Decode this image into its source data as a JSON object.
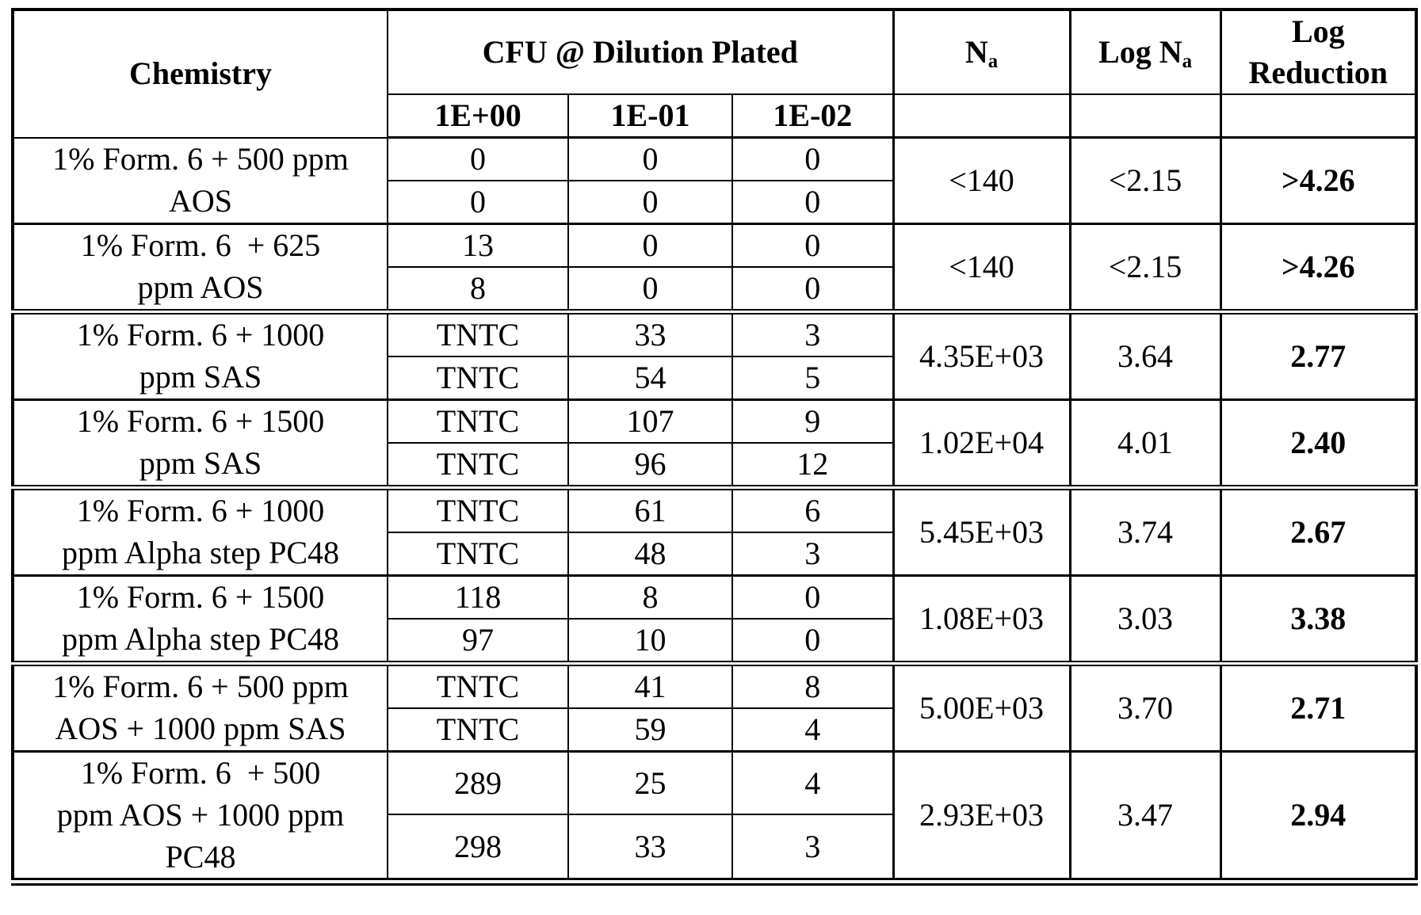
{
  "table": {
    "headers": {
      "chemistry": "Chemistry",
      "cfu_group": "CFU @ Dilution Plated",
      "dilutions": [
        "1E+00",
        "1E-01",
        "1E-02"
      ],
      "na": {
        "base": "N",
        "sub": "a"
      },
      "log_na": {
        "base": "Log N",
        "sub": "a"
      },
      "log_reduction": "Log Reduction"
    },
    "groups": [
      {
        "chemistry_lines": [
          "1% Form. 6 + 500 ppm",
          "AOS"
        ],
        "rows": [
          [
            "0",
            "0",
            "0"
          ],
          [
            "0",
            "0",
            "0"
          ]
        ],
        "na": "<140",
        "log_na": "<2.15",
        "log_reduction": ">4.26",
        "heavy_top": false
      },
      {
        "chemistry_lines": [
          "1% Form. 6  + 625",
          "ppm AOS"
        ],
        "rows": [
          [
            "13",
            "0",
            "0"
          ],
          [
            "8",
            "0",
            "0"
          ]
        ],
        "na": "<140",
        "log_na": "<2.15",
        "log_reduction": ">4.26",
        "heavy_top": false
      },
      {
        "chemistry_lines": [
          "1% Form. 6 + 1000",
          "ppm SAS"
        ],
        "rows": [
          [
            "TNTC",
            "33",
            "3"
          ],
          [
            "TNTC",
            "54",
            "5"
          ]
        ],
        "na": "4.35E+03",
        "log_na": "3.64",
        "log_reduction": "2.77",
        "heavy_top": true
      },
      {
        "chemistry_lines": [
          "1% Form. 6 + 1500",
          "ppm SAS"
        ],
        "rows": [
          [
            "TNTC",
            "107",
            "9"
          ],
          [
            "TNTC",
            "96",
            "12"
          ]
        ],
        "na": "1.02E+04",
        "log_na": "4.01",
        "log_reduction": "2.40",
        "heavy_top": false
      },
      {
        "chemistry_lines": [
          "1% Form. 6 + 1000",
          "ppm Alpha step PC48"
        ],
        "rows": [
          [
            "TNTC",
            "61",
            "6"
          ],
          [
            "TNTC",
            "48",
            "3"
          ]
        ],
        "na": "5.45E+03",
        "log_na": "3.74",
        "log_reduction": "2.67",
        "heavy_top": true
      },
      {
        "chemistry_lines": [
          "1% Form. 6 + 1500",
          "ppm Alpha step PC48"
        ],
        "rows": [
          [
            "118",
            "8",
            "0"
          ],
          [
            "97",
            "10",
            "0"
          ]
        ],
        "na": "1.08E+03",
        "log_na": "3.03",
        "log_reduction": "3.38",
        "heavy_top": false
      },
      {
        "chemistry_lines": [
          "1% Form. 6 + 500 ppm",
          "AOS + 1000 ppm SAS"
        ],
        "rows": [
          [
            "TNTC",
            "41",
            "8"
          ],
          [
            "TNTC",
            "59",
            "4"
          ]
        ],
        "na": "5.00E+03",
        "log_na": "3.70",
        "log_reduction": "2.71",
        "heavy_top": true
      },
      {
        "chemistry_lines": [
          "1% Form. 6  + 500",
          "ppm AOS + 1000 ppm",
          "PC48"
        ],
        "rows": [
          [
            "289",
            "25",
            "4"
          ],
          [
            "298",
            "33",
            "3"
          ]
        ],
        "na": "2.93E+03",
        "log_na": "3.47",
        "log_reduction": "2.94",
        "heavy_top": false
      }
    ]
  }
}
